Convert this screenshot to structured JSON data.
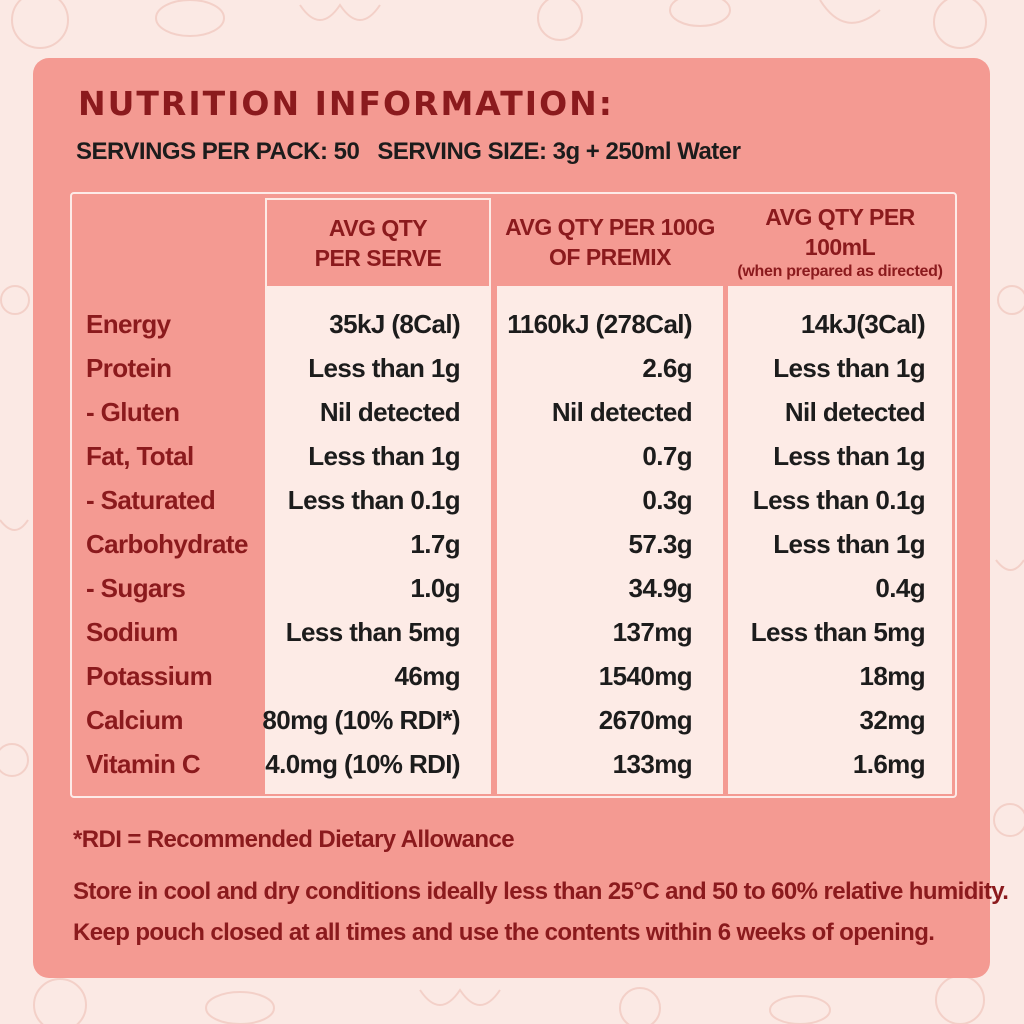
{
  "title": "NUTRITION INFORMATION:",
  "servings": {
    "per_pack": "SERVINGS PER PACK: 50",
    "size": "SERVING SIZE: 3g + 250ml Water"
  },
  "table": {
    "headers": [
      {
        "line1": "AVG QTY",
        "line2": "PER SERVE",
        "note": ""
      },
      {
        "line1": "AVG QTY PER 100G",
        "line2": "OF PREMIX",
        "note": ""
      },
      {
        "line1": "AVG QTY PER 100mL",
        "line2": "",
        "note": "(when prepared as directed)"
      }
    ],
    "rows": [
      {
        "label": "Energy",
        "serve": "35kJ (8Cal)",
        "per100g": "1160kJ (278Cal)",
        "per100ml": "14kJ(3Cal)"
      },
      {
        "label": "Protein",
        "serve": "Less than 1g",
        "per100g": "2.6g",
        "per100ml": "Less than 1g"
      },
      {
        "label": "- Gluten",
        "serve": "Nil detected",
        "per100g": "Nil detected",
        "per100ml": "Nil detected"
      },
      {
        "label": "Fat, Total",
        "serve": "Less than 1g",
        "per100g": "0.7g",
        "per100ml": "Less than 1g"
      },
      {
        "label": "- Saturated",
        "serve": "Less than 0.1g",
        "per100g": "0.3g",
        "per100ml": "Less than 0.1g"
      },
      {
        "label": "Carbohydrate",
        "serve": "1.7g",
        "per100g": "57.3g",
        "per100ml": "Less than 1g"
      },
      {
        "label": "- Sugars",
        "serve": "1.0g",
        "per100g": "34.9g",
        "per100ml": "0.4g"
      },
      {
        "label": "Sodium",
        "serve": "Less than 5mg",
        "per100g": "137mg",
        "per100ml": "Less than 5mg"
      },
      {
        "label": "Potassium",
        "serve": "46mg",
        "per100g": "1540mg",
        "per100ml": "18mg"
      },
      {
        "label": "Calcium",
        "serve": "80mg (10% RDI*)",
        "per100g": "2670mg",
        "per100ml": "32mg"
      },
      {
        "label": "Vitamin C",
        "serve": "4.0mg (10% RDI)",
        "per100g": "133mg",
        "per100ml": "1.6mg"
      }
    ]
  },
  "footnote": "*RDI = Recommended Dietary Allowance",
  "storage": [
    "Store in cool and dry conditions ideally less than 25°C and 50 to 60% relative humidity.",
    "Keep pouch closed at all times and use the contents within 6 weeks of opening."
  ],
  "colors": {
    "panel": "#f49a92",
    "cell_background": "#fdebe6",
    "label_text": "#8b1a1d",
    "value_text": "#1c1c1c",
    "page_background": "#fbe9e4"
  }
}
